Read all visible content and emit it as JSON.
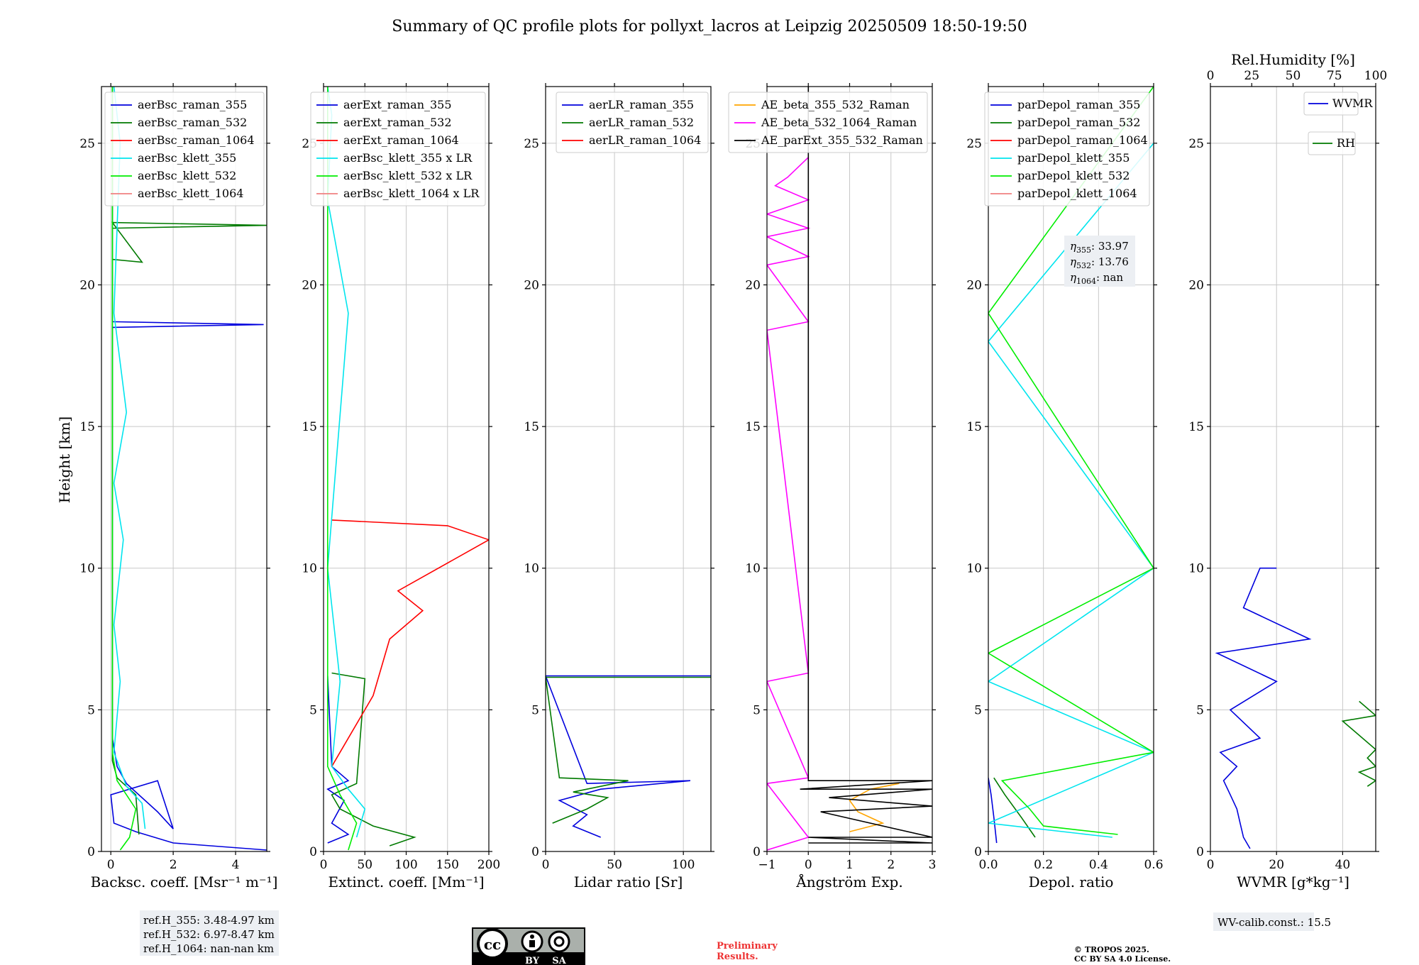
{
  "title": "Summary of QC profile plots for pollyxt_lacros at Leipzig 20250509 18:50-19:50",
  "ylabel": "Height [km]",
  "colors": {
    "raman_355": "#0000dd",
    "raman_532": "#007a00",
    "raman_1064": "#ff0000",
    "klett_355": "#00e5ee",
    "klett_532": "#00ee00",
    "klett_1064": "#f08080",
    "ae_beta_355_532": "#ffa500",
    "ae_beta_532_1064": "#ff00ff",
    "ae_parext": "#000000"
  },
  "panels": [
    {
      "xlabel": "Backsc. coeff. [Msr$^{-1}$ m$^{-1}$]",
      "xlabel_display": "Backsc. coeff. [Msr⁻¹ m⁻¹]",
      "legend": [
        "aerBsc_raman_355",
        "aerBsc_raman_532",
        "aerBsc_raman_1064",
        "aerBsc_klett_355",
        "aerBsc_klett_532",
        "aerBsc_klett_1064"
      ]
    },
    {
      "xlabel_display": "Extinct. coeff. [Mm⁻¹]",
      "legend": [
        "aerExt_raman_355",
        "aerExt_raman_532",
        "aerExt_raman_1064",
        "aerBsc_klett_355 x LR",
        "aerBsc_klett_532 x LR",
        "aerBsc_klett_1064 x LR"
      ]
    },
    {
      "xlabel_display": "Lidar ratio [Sr]",
      "legend": [
        "aerLR_raman_355",
        "aerLR_raman_532",
        "aerLR_raman_1064"
      ]
    },
    {
      "xlabel_display": "Ångström Exp.",
      "legend": [
        "AE_beta_355_532_Raman",
        "AE_beta_532_1064_Raman",
        "AE_parExt_355_532_Raman"
      ]
    },
    {
      "xlabel_display": "Depol. ratio",
      "legend": [
        "parDepol_raman_355",
        "parDepol_raman_532",
        "parDepol_raman_1064",
        "parDepol_klett_355",
        "parDepol_klett_532",
        "parDepol_klett_1064"
      ]
    },
    {
      "xlabel_display": "WVMR [g*kg⁻¹]",
      "top_label": "Rel.Humidity [%]",
      "legend": [
        "WVMR",
        "RH"
      ]
    }
  ],
  "notes": {
    "ref_h_355": "ref.H_355: 3.48-4.97 km",
    "ref_h_532": "ref.H_532: 6.97-8.47 km",
    "ref_h_1064": "ref.H_1064: nan-nan km",
    "eta_355": "33.97",
    "eta_532": "13.76",
    "eta_1064": "nan",
    "wv_calib": "WV-calib.const.: 15.5",
    "preliminary_1": "Preliminary",
    "preliminary_2": "Results.",
    "copyright_1": "© TROPOS 2025.",
    "copyright_2": "CC BY SA 4.0 License.",
    "cc_by": "BY",
    "cc_sa": "SA"
  },
  "chart_data": [
    {
      "type": "line",
      "xlabel": "Backsc. coeff. [Msr⁻¹ m⁻¹]",
      "ylabel": "Height [km]",
      "xlim": [
        -0.3,
        5
      ],
      "ylim": [
        0,
        27
      ],
      "xticks": [
        0,
        2,
        4
      ],
      "yticks": [
        0,
        5,
        10,
        15,
        20,
        25
      ],
      "series": [
        {
          "name": "aerBsc_raman_355",
          "x": [
            5.0,
            2.0,
            0.8,
            0.1,
            0.0,
            1.5,
            2.0,
            1.5,
            0.5,
            0.2,
            0.05,
            0.05,
            0.05,
            4.9,
            0.05,
            0.05
          ],
          "y": [
            0.05,
            0.3,
            0.7,
            1.0,
            2.0,
            2.5,
            0.8,
            1.4,
            2.4,
            3.0,
            4.0,
            18.0,
            18.5,
            18.6,
            18.7,
            27.0
          ]
        },
        {
          "name": "aerBsc_raman_532",
          "x": [
            0.9,
            0.8,
            0.5,
            0.2,
            0.05,
            0.05,
            0.05,
            5.0,
            0.05,
            1.0,
            0.05,
            0.05
          ],
          "y": [
            0.6,
            2.0,
            2.3,
            2.6,
            3.2,
            20.0,
            22.0,
            22.1,
            22.2,
            20.8,
            20.9,
            27.0
          ]
        },
        {
          "name": "aerBsc_raman_1064",
          "x": [],
          "y": []
        },
        {
          "name": "aerBsc_klett_355",
          "x": [
            1.1,
            1.0,
            0.5,
            0.1,
            0.3,
            0.1,
            0.4,
            0.1,
            0.5,
            0.1,
            0.3,
            0.1
          ],
          "y": [
            0.8,
            1.7,
            2.3,
            3.5,
            6.0,
            8.0,
            11.0,
            13.0,
            15.5,
            19.0,
            25.0,
            27.0
          ]
        },
        {
          "name": "aerBsc_klett_532",
          "x": [
            0.3,
            0.6,
            0.8,
            0.5,
            0.2,
            0.05,
            0.05
          ],
          "y": [
            0.05,
            0.5,
            1.5,
            2.0,
            2.5,
            3.5,
            27.0
          ]
        },
        {
          "name": "aerBsc_klett_1064",
          "x": [],
          "y": []
        }
      ]
    },
    {
      "type": "line",
      "xlabel": "Extinct. coeff. [Mm⁻¹]",
      "ylabel": "Height [km]",
      "xlim": [
        0,
        200
      ],
      "ylim": [
        0,
        27
      ],
      "xticks": [
        0,
        50,
        100,
        150,
        200
      ],
      "yticks": [
        0,
        5,
        10,
        15,
        20,
        25
      ],
      "series": [
        {
          "name": "aerExt_raman_355",
          "x": [
            5,
            30,
            10,
            25,
            5,
            30,
            10,
            5
          ],
          "y": [
            0.3,
            0.6,
            1.0,
            1.8,
            2.2,
            2.5,
            3.0,
            6.2
          ]
        },
        {
          "name": "aerExt_raman_532",
          "x": [
            80,
            110,
            60,
            20,
            10,
            40,
            50,
            10
          ],
          "y": [
            0.2,
            0.5,
            0.9,
            1.5,
            2.0,
            2.4,
            6.1,
            6.3
          ]
        },
        {
          "name": "aerExt_raman_1064",
          "x": [
            10,
            60,
            80,
            120,
            90,
            200,
            150,
            10
          ],
          "y": [
            3.0,
            5.5,
            7.5,
            8.5,
            9.2,
            11.0,
            11.5,
            11.7
          ]
        },
        {
          "name": "aerBsc_klett_355 x LR",
          "x": [
            40,
            50,
            30,
            10,
            20,
            5,
            30,
            5,
            10,
            5
          ],
          "y": [
            0.5,
            1.5,
            2.2,
            3.0,
            6.0,
            10.0,
            19.0,
            23.0,
            26.0,
            27.0
          ]
        },
        {
          "name": "aerBsc_klett_532 x LR",
          "x": [
            30,
            40,
            20,
            5,
            5
          ],
          "y": [
            0.05,
            1.0,
            2.0,
            3.0,
            27.0
          ]
        },
        {
          "name": "aerBsc_klett_1064 x LR",
          "x": [],
          "y": []
        }
      ]
    },
    {
      "type": "line",
      "xlabel": "Lidar ratio [Sr]",
      "ylabel": "Height [km]",
      "xlim": [
        0,
        120
      ],
      "ylim": [
        0,
        27
      ],
      "xticks": [
        0,
        50,
        100
      ],
      "yticks": [
        0,
        5,
        10,
        15,
        20,
        25
      ],
      "series": [
        {
          "name": "aerLR_raman_355",
          "x": [
            40,
            20,
            30,
            10,
            40,
            105,
            30,
            0,
            120
          ],
          "y": [
            0.5,
            0.9,
            1.3,
            1.8,
            2.2,
            2.5,
            2.4,
            6.2,
            6.2
          ]
        },
        {
          "name": "aerLR_raman_532",
          "x": [
            5,
            30,
            45,
            20,
            60,
            10,
            0,
            120
          ],
          "y": [
            1.0,
            1.5,
            1.9,
            2.1,
            2.5,
            2.6,
            6.15,
            6.15
          ]
        },
        {
          "name": "aerLR_raman_1064",
          "x": [],
          "y": []
        }
      ]
    },
    {
      "type": "line",
      "xlabel": "Ångström Exp.",
      "ylabel": "Height [km]",
      "xlim": [
        -1,
        3
      ],
      "ylim": [
        0,
        27
      ],
      "xticks": [
        -1,
        0,
        1,
        2,
        3
      ],
      "yticks": [
        0,
        5,
        10,
        15,
        20,
        25
      ],
      "series": [
        {
          "name": "AE_beta_355_532_Raman",
          "x": [
            1.0,
            1.8,
            1.2,
            1.0,
            1.5,
            2.2
          ],
          "y": [
            0.7,
            1.0,
            1.4,
            1.8,
            2.2,
            2.4
          ]
        },
        {
          "name": "AE_beta_532_1064_Raman",
          "x": [
            -1,
            0,
            -1,
            0,
            -1,
            0,
            -1,
            0,
            -1,
            0,
            -1,
            0,
            -1,
            0,
            -0.8,
            -0.5,
            0
          ],
          "y": [
            0.05,
            0.5,
            2.4,
            2.6,
            6.0,
            6.3,
            18.4,
            18.7,
            20.7,
            21.0,
            21.7,
            22.0,
            22.5,
            23.0,
            23.5,
            23.8,
            24.5
          ]
        },
        {
          "name": "AE_parExt_355_532_Raman",
          "x": [
            0,
            0,
            3,
            -0.2,
            3,
            0.5,
            3,
            0.3,
            3,
            0,
            3,
            0,
            3
          ],
          "y": [
            27,
            2.5,
            2.5,
            2.2,
            2.2,
            1.9,
            1.6,
            1.4,
            0.5,
            0.5,
            0.3,
            0.3,
            0.3
          ]
        }
      ]
    },
    {
      "type": "line",
      "xlabel": "Depol. ratio",
      "ylabel": "Height [km]",
      "xlim": [
        0,
        0.6
      ],
      "ylim": [
        0,
        27
      ],
      "xticks": [
        0.0,
        0.2,
        0.4,
        0.6
      ],
      "yticks": [
        0,
        5,
        10,
        15,
        20,
        25
      ],
      "series": [
        {
          "name": "parDepol_raman_355",
          "x": [
            0.03,
            0.02,
            0.01,
            0.0
          ],
          "y": [
            0.3,
            1.2,
            2.0,
            2.6
          ]
        },
        {
          "name": "parDepol_raman_532",
          "x": [
            0.17,
            0.12,
            0.06,
            0.02
          ],
          "y": [
            0.5,
            1.2,
            2.0,
            2.6
          ]
        },
        {
          "name": "parDepol_raman_1064",
          "x": [],
          "y": []
        },
        {
          "name": "parDepol_klett_355",
          "x": [
            0.45,
            0.0,
            0.6,
            0.0,
            0.6,
            0.0,
            0.6
          ],
          "y": [
            0.5,
            1.0,
            3.5,
            6.0,
            10.0,
            18.0,
            25.0
          ]
        },
        {
          "name": "parDepol_klett_532",
          "x": [
            0.47,
            0.2,
            0.15,
            0.05,
            0.6,
            0.0,
            0.6,
            0.0,
            0.6
          ],
          "y": [
            0.6,
            0.9,
            1.5,
            2.5,
            3.5,
            7.0,
            10.0,
            19.0,
            27.0
          ]
        },
        {
          "name": "parDepol_klett_1064",
          "x": [],
          "y": []
        }
      ]
    },
    {
      "type": "line",
      "xlabel": "WVMR [g*kg⁻¹]",
      "ylabel": "Height [km]",
      "xlim": [
        0,
        50
      ],
      "ylim": [
        0,
        27
      ],
      "xticks": [
        0,
        20,
        40
      ],
      "yticks": [
        0,
        5,
        10,
        15,
        20,
        25
      ],
      "x2label": "Rel.Humidity [%]",
      "x2lim": [
        0,
        100
      ],
      "x2ticks": [
        0,
        25,
        50,
        75,
        100
      ],
      "series": [
        {
          "name": "WVMR",
          "x": [
            12,
            10,
            9,
            8,
            6,
            4,
            8,
            3,
            15,
            6,
            20,
            2,
            30,
            10,
            15,
            20
          ],
          "y": [
            0.1,
            0.5,
            1.0,
            1.5,
            2.0,
            2.5,
            3.0,
            3.5,
            4.0,
            5.0,
            6.0,
            7.0,
            7.5,
            8.6,
            10.0,
            10.0
          ]
        },
        {
          "name": "RH",
          "x": [
            95,
            100,
            90,
            100,
            95,
            100,
            80,
            100,
            90
          ],
          "y": [
            2.3,
            2.5,
            2.8,
            3.0,
            3.3,
            3.6,
            4.6,
            4.8,
            5.3
          ]
        }
      ]
    }
  ]
}
